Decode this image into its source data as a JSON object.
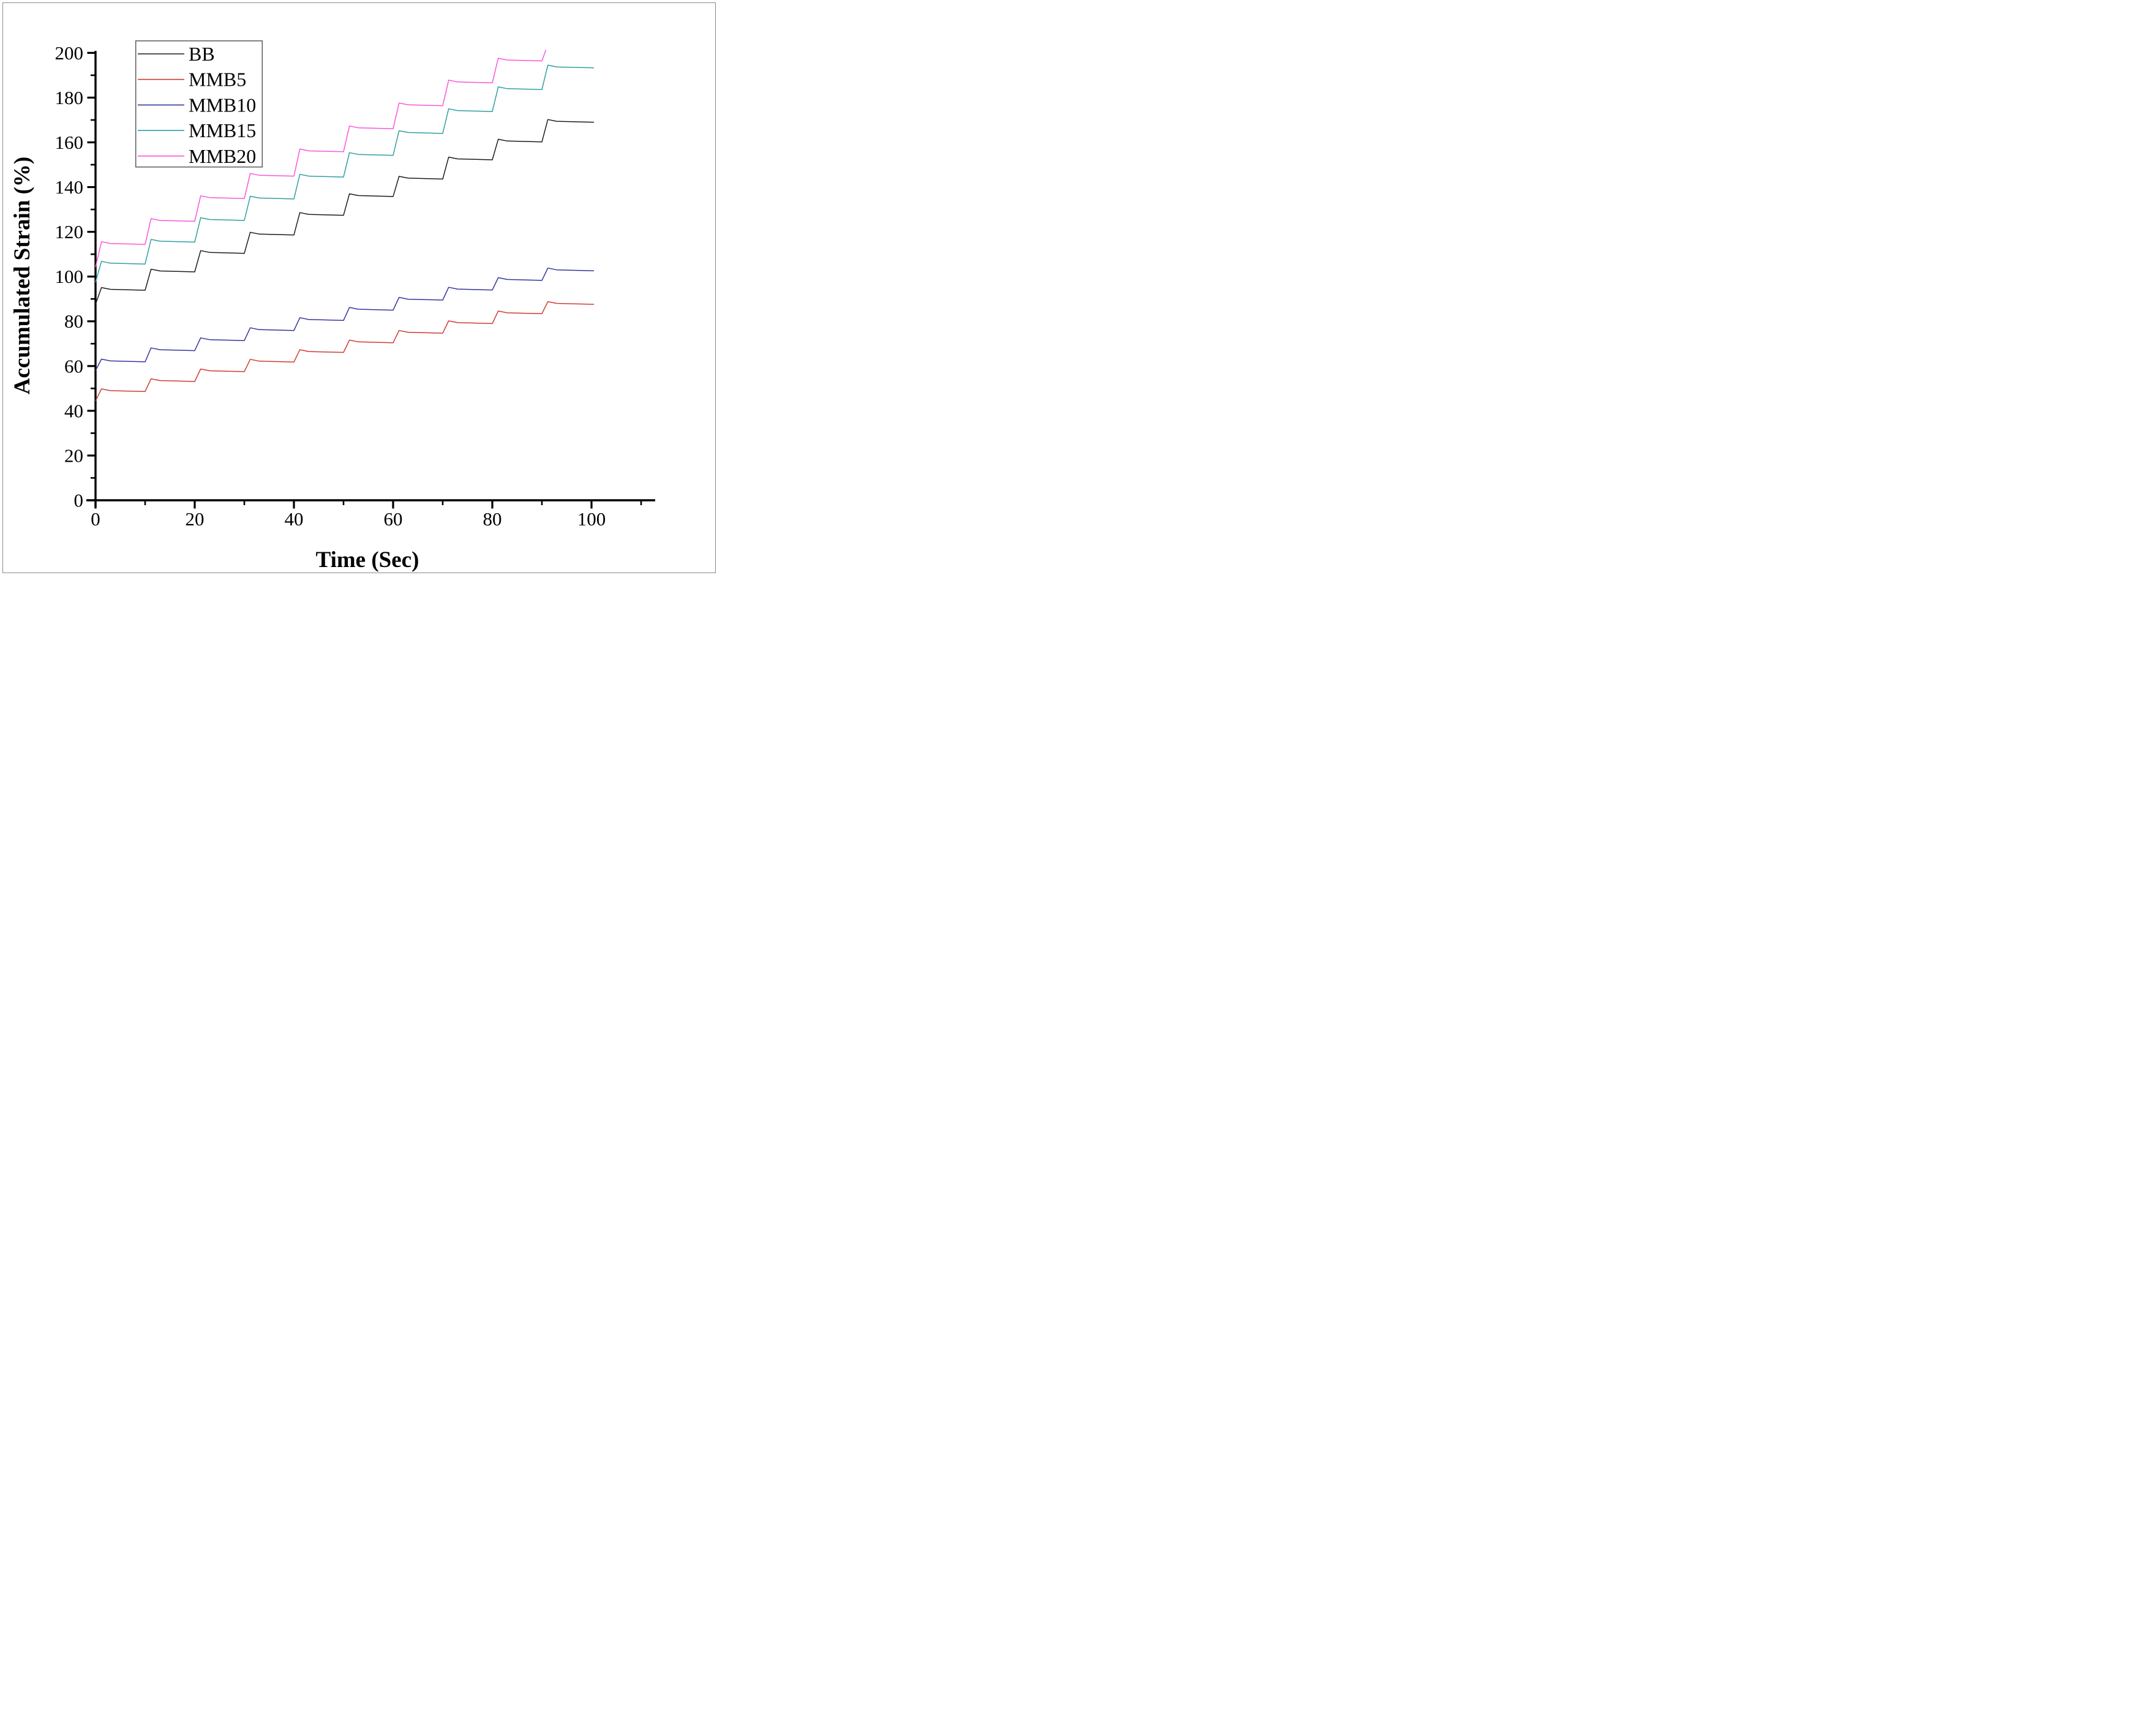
{
  "figure": {
    "background": "#ffffff",
    "border_color": "#8a8a8a"
  },
  "chart_data": {
    "type": "line",
    "title": "",
    "xlabel": "Time (Sec)",
    "ylabel": "Accumulated Strain (%)",
    "xlim": [
      0,
      112
    ],
    "ylim": [
      0,
      200
    ],
    "x_major_ticks": [
      0,
      20,
      40,
      60,
      80,
      100
    ],
    "x_minor_ticks": [
      10,
      30,
      50,
      70,
      90,
      110
    ],
    "y_major_ticks": [
      0,
      20,
      40,
      60,
      80,
      100,
      120,
      140,
      160,
      180,
      200
    ],
    "y_minor_ticks": [
      10,
      30,
      50,
      70,
      90,
      110,
      130,
      150,
      170,
      190
    ],
    "grid": false,
    "legend_position": "top-left",
    "cycle_period_sec": 10,
    "ramp_duration_sec": 1.2,
    "peak_overshoot": 0.8,
    "plateau_sag": 0.4,
    "series": [
      {
        "name": "BB",
        "color": "#1c1c1c",
        "start": 87.6,
        "plateaus": [
          94.3,
          102.5,
          110.8,
          119.0,
          127.8,
          136.2,
          144.0,
          152.6,
          160.6,
          169.4
        ],
        "end_time": 100.5
      },
      {
        "name": "MMB5",
        "color": "#cf3a34",
        "start": 44.4,
        "plateaus": [
          49.0,
          53.5,
          57.9,
          62.2,
          66.5,
          70.8,
          75.1,
          79.4,
          83.8,
          88.0
        ],
        "end_time": 100.5
      },
      {
        "name": "MMB10",
        "color": "#34349f",
        "start": 58.0,
        "plateaus": [
          62.3,
          67.3,
          71.8,
          76.3,
          80.8,
          85.4,
          89.9,
          94.4,
          98.7,
          103.0
        ],
        "end_time": 100.5
      },
      {
        "name": "MMB15",
        "color": "#2f9f9f",
        "start": 97.5,
        "plateaus": [
          106.0,
          115.8,
          125.5,
          135.1,
          144.9,
          154.6,
          164.4,
          174.2,
          184.0,
          193.7
        ],
        "end_time": 100.5
      },
      {
        "name": "MMB20",
        "color": "#fa55d9",
        "start": 104.3,
        "plateaus": [
          114.8,
          125.1,
          135.3,
          145.3,
          156.2,
          166.5,
          176.8,
          187.0,
          196.8
        ],
        "final_ramp": {
          "time": 90.8,
          "value": 201.3
        }
      }
    ]
  }
}
